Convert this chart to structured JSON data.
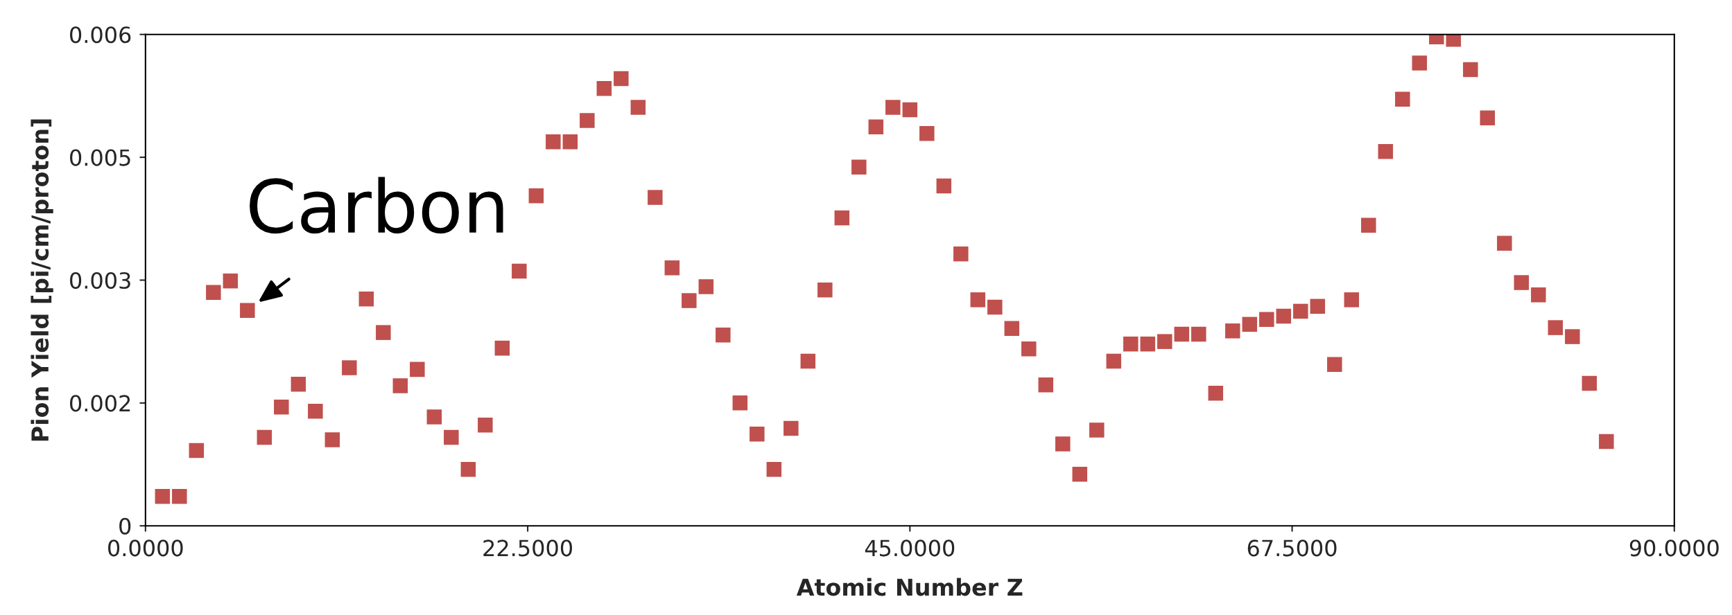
{
  "chart_data": {
    "type": "scatter",
    "xlabel": "Atomic Number Z",
    "ylabel": "Pion Yield [pi/cm/proton]",
    "x": [
      1,
      2,
      3,
      4,
      5,
      6,
      7,
      8,
      9,
      10,
      11,
      12,
      13,
      14,
      15,
      16,
      17,
      18,
      19,
      20,
      21,
      22,
      23,
      24,
      25,
      26,
      27,
      28,
      29,
      30,
      31,
      32,
      33,
      34,
      35,
      36,
      37,
      38,
      39,
      40,
      41,
      42,
      43,
      44,
      45,
      46,
      47,
      48,
      49,
      50,
      51,
      52,
      53,
      54,
      55,
      56,
      57,
      58,
      59,
      60,
      61,
      62,
      63,
      64,
      65,
      66,
      67,
      68,
      69,
      70,
      71,
      72,
      73,
      74,
      75,
      76,
      77,
      78,
      79,
      80,
      81,
      82,
      83,
      84,
      85,
      86
    ],
    "series": [
      {
        "color": "#c0504d",
        "values": [
          0.00036,
          0.00036,
          0.00092,
          0.00285,
          0.00299,
          0.00263,
          0.00108,
          0.00145,
          0.00173,
          0.0014,
          0.00105,
          0.00193,
          0.00277,
          0.00236,
          0.00171,
          0.00191,
          0.00133,
          0.00108,
          0.00069,
          0.00123,
          0.00217,
          0.00311,
          0.00403,
          0.00469,
          0.00469,
          0.00495,
          0.00534,
          0.00546,
          0.00511,
          0.00401,
          0.00315,
          0.00275,
          0.00292,
          0.00233,
          0.0015,
          0.00112,
          0.00069,
          0.00119,
          0.00201,
          0.00288,
          0.00376,
          0.00438,
          0.00487,
          0.00511,
          0.00508,
          0.00479,
          0.00415,
          0.00332,
          0.00276,
          0.00267,
          0.00241,
          0.00216,
          0.00172,
          0.001,
          0.00063,
          0.00117,
          0.00201,
          0.00222,
          0.00222,
          0.00225,
          0.00234,
          0.00234,
          0.00162,
          0.00238,
          0.00246,
          0.00252,
          0.00256,
          0.00262,
          0.00268,
          0.00197,
          0.00276,
          0.00367,
          0.00457,
          0.00521,
          0.00565,
          0.00597,
          0.00594,
          0.00557,
          0.00498,
          0.00345,
          0.00297,
          0.00282,
          0.00242,
          0.00231,
          0.00174,
          0.00103
        ]
      }
    ],
    "marker": "square",
    "xlim": [
      0,
      90
    ],
    "xticks": [
      {
        "value": 0,
        "label": "0.0000"
      },
      {
        "value": 22.5,
        "label": "22.5000"
      },
      {
        "value": 45,
        "label": "45.0000"
      },
      {
        "value": 67.5,
        "label": "67.5000"
      },
      {
        "value": 90,
        "label": "90.0000"
      }
    ],
    "ylim": [
      0,
      0.006
    ],
    "yticks": [
      0,
      {
        "value": 0.0015,
        "label": "0.002"
      },
      0.003,
      {
        "value": 0.0045,
        "label": "0.005"
      },
      0.006
    ],
    "grid": false,
    "annotations": [
      {
        "text": "Carbon",
        "x": 6,
        "y": 0.00263
      }
    ]
  }
}
